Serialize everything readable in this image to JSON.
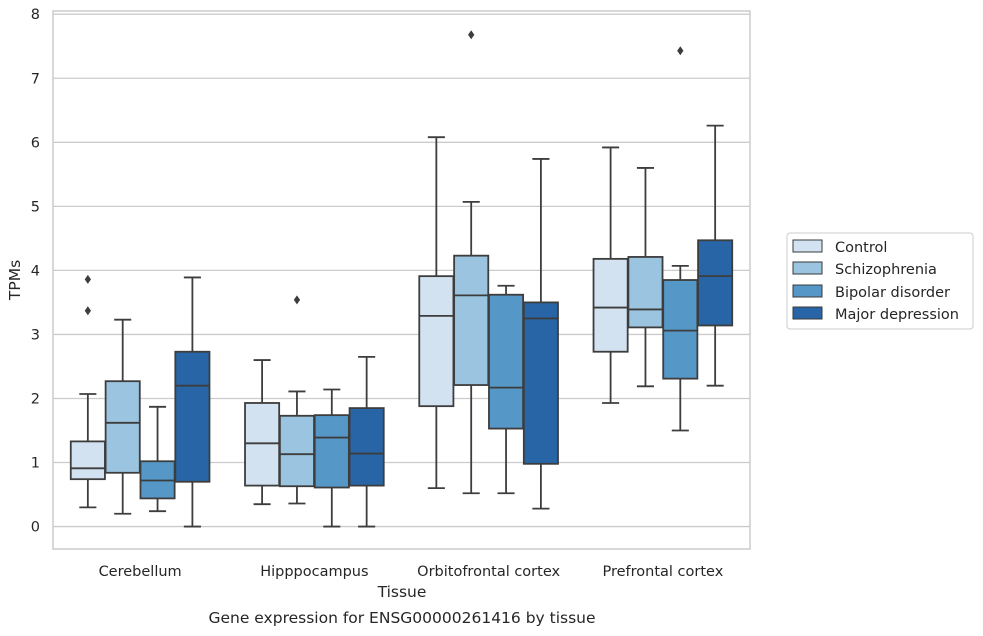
{
  "chart_data": {
    "type": "box",
    "title": "",
    "caption": "Gene expression for ENSG00000261416 by tissue",
    "xlabel": "Tissue",
    "ylabel": "TPMs",
    "ylim": [
      -0.35,
      8.05
    ],
    "yticks": [
      "0",
      "1",
      "2",
      "3",
      "4",
      "5",
      "6",
      "7",
      "8"
    ],
    "categories": [
      "Cerebellum",
      "Hipppocampus",
      "Orbitofrontal cortex",
      "Prefrontal cortex"
    ],
    "grid": true,
    "legend_position": "right",
    "series": [
      {
        "name": "Control",
        "color": "#d2e2f1",
        "boxes": [
          {
            "whislo": 0.3,
            "q1": 0.74,
            "med": 0.91,
            "q3": 1.33,
            "whishi": 2.07,
            "fliers": [
              3.37,
              3.86
            ]
          },
          {
            "whislo": 0.35,
            "q1": 0.64,
            "med": 1.3,
            "q3": 1.93,
            "whishi": 2.6,
            "fliers": []
          },
          {
            "whislo": 0.6,
            "q1": 1.88,
            "med": 3.29,
            "q3": 3.91,
            "whishi": 6.08,
            "fliers": []
          },
          {
            "whislo": 1.93,
            "q1": 2.73,
            "med": 3.42,
            "q3": 4.18,
            "whishi": 5.92,
            "fliers": []
          }
        ]
      },
      {
        "name": "Schizophrenia",
        "color": "#9ac4df",
        "boxes": [
          {
            "whislo": 0.2,
            "q1": 0.84,
            "med": 1.62,
            "q3": 2.27,
            "whishi": 3.23,
            "fliers": []
          },
          {
            "whislo": 0.36,
            "q1": 0.63,
            "med": 1.13,
            "q3": 1.73,
            "whishi": 2.11,
            "fliers": [
              3.54
            ]
          },
          {
            "whislo": 0.52,
            "q1": 2.21,
            "med": 3.61,
            "q3": 4.23,
            "whishi": 5.07,
            "fliers": [
              7.68
            ]
          },
          {
            "whislo": 2.19,
            "q1": 3.11,
            "med": 3.39,
            "q3": 4.21,
            "whishi": 5.6,
            "fliers": []
          }
        ]
      },
      {
        "name": "Bipolar disorder",
        "color": "#5597c7",
        "boxes": [
          {
            "whislo": 0.24,
            "q1": 0.44,
            "med": 0.72,
            "q3": 1.02,
            "whishi": 1.87,
            "fliers": []
          },
          {
            "whislo": 0.0,
            "q1": 0.61,
            "med": 1.39,
            "q3": 1.74,
            "whishi": 2.14,
            "fliers": []
          },
          {
            "whislo": 0.52,
            "q1": 1.53,
            "med": 2.17,
            "q3": 3.62,
            "whishi": 3.76,
            "fliers": []
          },
          {
            "whislo": 1.5,
            "q1": 2.31,
            "med": 3.06,
            "q3": 3.85,
            "whishi": 4.07,
            "fliers": [
              7.43
            ]
          }
        ]
      },
      {
        "name": "Major depression",
        "color": "#2865a6",
        "boxes": [
          {
            "whislo": 0.0,
            "q1": 0.7,
            "med": 2.2,
            "q3": 2.73,
            "whishi": 3.89,
            "fliers": []
          },
          {
            "whislo": 0.0,
            "q1": 0.64,
            "med": 1.14,
            "q3": 1.85,
            "whishi": 2.65,
            "fliers": []
          },
          {
            "whislo": 0.28,
            "q1": 0.98,
            "med": 3.25,
            "q3": 3.5,
            "whishi": 5.74,
            "fliers": []
          },
          {
            "whislo": 2.2,
            "q1": 3.14,
            "med": 3.91,
            "q3": 4.47,
            "whishi": 6.26,
            "fliers": []
          }
        ]
      }
    ]
  }
}
